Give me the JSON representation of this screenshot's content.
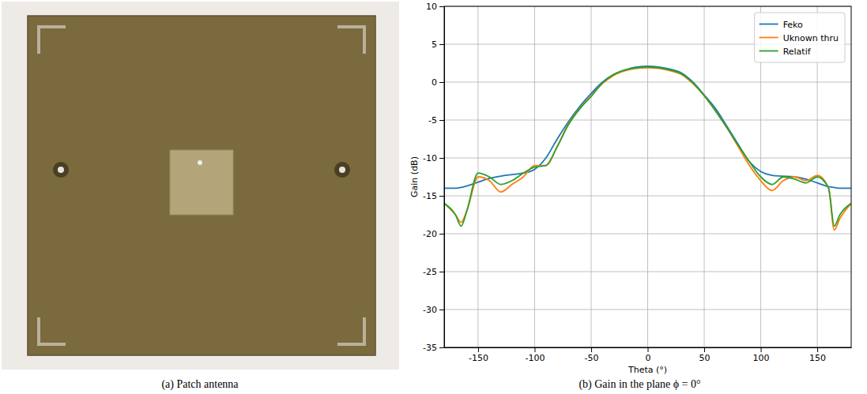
{
  "captions": [
    "(a) Patch antenna",
    "(b) Gain in the plane ϕ = 0°"
  ],
  "chart_data": {
    "type": "line",
    "x_label": "Theta (°)",
    "y_label": "Gain (dB)",
    "x": [
      -180,
      -170,
      -165,
      -160,
      -150,
      -140,
      -130,
      -120,
      -110,
      -100,
      -90,
      -80,
      -70,
      -60,
      -50,
      -40,
      -30,
      -20,
      -10,
      0,
      10,
      20,
      30,
      40,
      50,
      60,
      70,
      80,
      90,
      100,
      110,
      120,
      130,
      140,
      150,
      160,
      165,
      170,
      180
    ],
    "series": [
      {
        "name": "Feko",
        "color": "#1f77b4",
        "values": [
          -14,
          -14,
          -13.9,
          -13.7,
          -13.2,
          -12.7,
          -12.4,
          -12.2,
          -12,
          -11.5,
          -10,
          -7.5,
          -5.2,
          -3.2,
          -1.5,
          0,
          1,
          1.6,
          2,
          2.1,
          2,
          1.7,
          1.2,
          0,
          -1.7,
          -3.5,
          -5.8,
          -8.2,
          -10.5,
          -11.8,
          -12.3,
          -12.4,
          -12.5,
          -12.8,
          -13.3,
          -13.8,
          -13.9,
          -14,
          -14
        ]
      },
      {
        "name": "Uknown thru",
        "color": "#ff7f0e",
        "values": [
          -16,
          -17.5,
          -18.5,
          -17,
          -12.5,
          -13,
          -14.5,
          -13.5,
          -12.5,
          -11,
          -11,
          -8.5,
          -5.5,
          -3.5,
          -1.8,
          -0.2,
          0.9,
          1.5,
          1.8,
          1.9,
          1.8,
          1.5,
          1,
          -0.2,
          -1.8,
          -3.8,
          -6,
          -8.5,
          -11,
          -13,
          -14.3,
          -13,
          -12.5,
          -13,
          -12.3,
          -14,
          -19.5,
          -18,
          -16
        ]
      },
      {
        "name": "Relatif",
        "color": "#2ca02c",
        "values": [
          -16,
          -17.5,
          -19,
          -17,
          -12,
          -12.5,
          -13.5,
          -13,
          -12,
          -11.2,
          -11,
          -8.5,
          -5.6,
          -3.5,
          -1.9,
          -0.1,
          1,
          1.6,
          1.9,
          2,
          1.9,
          1.6,
          1.1,
          -0.1,
          -1.8,
          -3.8,
          -6,
          -8.3,
          -10.5,
          -12.5,
          -13.5,
          -12.5,
          -12.8,
          -13.3,
          -12.5,
          -14,
          -19,
          -17.5,
          -16
        ]
      }
    ],
    "xlim": [
      -180,
      180
    ],
    "xticks": [
      -150,
      -100,
      -50,
      0,
      50,
      100,
      150
    ],
    "ylim": [
      -35,
      10
    ],
    "yticks": [
      -35,
      -30,
      -25,
      -20,
      -15,
      -10,
      -5,
      0,
      5,
      10
    ],
    "grid": true,
    "legend": "upper right"
  }
}
